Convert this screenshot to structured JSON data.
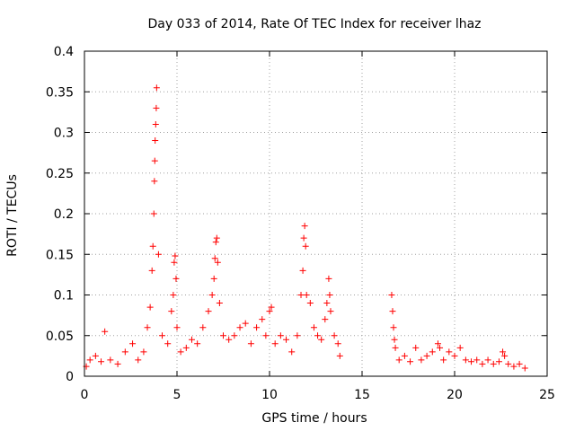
{
  "chart_data": {
    "type": "scatter",
    "title": "Day 033 of 2014, Rate Of TEC Index for receiver lhaz",
    "xlabel": "GPS time / hours",
    "ylabel": "ROTI / TECUs",
    "xlim": [
      0,
      25
    ],
    "ylim": [
      0,
      0.4
    ],
    "xticks": [
      0,
      5,
      10,
      15,
      20,
      25
    ],
    "xtick_labels": [
      "0",
      "5",
      "10",
      "15",
      "20",
      "25"
    ],
    "yticks": [
      0,
      0.05,
      0.1,
      0.15,
      0.2,
      0.25,
      0.3,
      0.35,
      0.4
    ],
    "ytick_labels": [
      "0",
      "0.05",
      "0.1",
      "0.15",
      "0.2",
      "0.25",
      "0.3",
      "0.35",
      "0.4"
    ],
    "grid": true,
    "marker": "plus",
    "color": "#ff0000",
    "series": [
      {
        "x": [
          0.1,
          0.3,
          0.6,
          0.9,
          1.1,
          1.4,
          1.8,
          2.2,
          2.6,
          2.9,
          3.2,
          3.4,
          3.55,
          3.65,
          3.7,
          3.75,
          3.78,
          3.8,
          3.82,
          3.85,
          3.88,
          3.9,
          4.0,
          4.2,
          4.5,
          4.7,
          4.8,
          4.85,
          4.9,
          4.95,
          5.0,
          5.2,
          5.5,
          5.8,
          6.1,
          6.4,
          6.7,
          6.9,
          7.0,
          7.05,
          7.1,
          7.15,
          7.2,
          7.3,
          7.5,
          7.8,
          8.1,
          8.4,
          8.7,
          9.0,
          9.3,
          9.6,
          9.8,
          10.0,
          10.1,
          10.3,
          10.6,
          10.9,
          11.2,
          11.5,
          11.7,
          11.8,
          11.85,
          11.9,
          11.95,
          12.0,
          12.2,
          12.4,
          12.6,
          12.8,
          13.0,
          13.1,
          13.2,
          13.25,
          13.3,
          13.5,
          13.7,
          13.8,
          16.6,
          16.65,
          16.7,
          16.75,
          16.8,
          17.0,
          17.3,
          17.6,
          17.9,
          18.2,
          18.5,
          18.8,
          19.1,
          19.2,
          19.4,
          19.7,
          20.0,
          20.3,
          20.6,
          20.9,
          21.2,
          21.5,
          21.8,
          22.1,
          22.4,
          22.6,
          22.7,
          22.9,
          23.2,
          23.5,
          23.8
        ],
        "y": [
          0.012,
          0.02,
          0.025,
          0.018,
          0.055,
          0.02,
          0.015,
          0.03,
          0.04,
          0.02,
          0.03,
          0.06,
          0.085,
          0.13,
          0.16,
          0.2,
          0.24,
          0.265,
          0.29,
          0.31,
          0.33,
          0.355,
          0.15,
          0.05,
          0.04,
          0.08,
          0.1,
          0.14,
          0.148,
          0.12,
          0.06,
          0.03,
          0.035,
          0.045,
          0.04,
          0.06,
          0.08,
          0.1,
          0.12,
          0.145,
          0.165,
          0.17,
          0.14,
          0.09,
          0.05,
          0.045,
          0.05,
          0.06,
          0.065,
          0.04,
          0.06,
          0.07,
          0.05,
          0.08,
          0.085,
          0.04,
          0.05,
          0.045,
          0.03,
          0.05,
          0.1,
          0.13,
          0.17,
          0.185,
          0.16,
          0.1,
          0.09,
          0.06,
          0.05,
          0.045,
          0.07,
          0.09,
          0.12,
          0.1,
          0.08,
          0.05,
          0.04,
          0.025,
          0.1,
          0.08,
          0.06,
          0.045,
          0.035,
          0.02,
          0.025,
          0.018,
          0.035,
          0.02,
          0.025,
          0.03,
          0.04,
          0.035,
          0.02,
          0.03,
          0.025,
          0.035,
          0.02,
          0.018,
          0.02,
          0.015,
          0.02,
          0.015,
          0.018,
          0.03,
          0.025,
          0.015,
          0.012,
          0.015,
          0.01
        ]
      }
    ]
  }
}
